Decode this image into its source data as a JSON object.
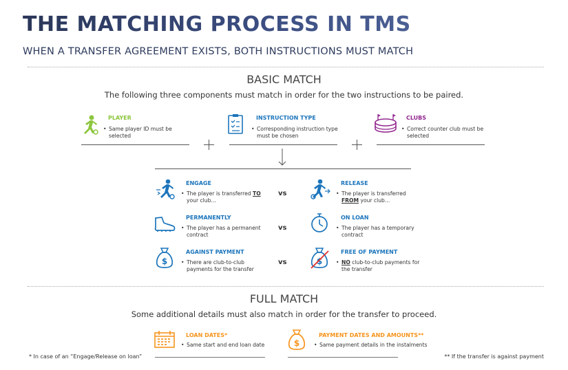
{
  "header": {
    "title": "THE MATCHING PROCESS IN TMS",
    "subtitle": "WHEN A TRANSFER AGREEMENT EXISTS, BOTH INSTRUCTIONS MUST MATCH"
  },
  "basic": {
    "heading": "BASIC MATCH",
    "intro": "The following three components must match in order for the two instructions to be paired.",
    "components": [
      {
        "title": "PLAYER",
        "desc": "Same player ID must be selected"
      },
      {
        "title": "INSTRUCTION TYPE",
        "desc": "Corresponding instruction type must be chosen"
      },
      {
        "title": "CLUBS",
        "desc": "Correct counter club must be selected"
      }
    ],
    "rows": [
      {
        "left": {
          "title": "ENGAGE",
          "desc_lead": "The player is transferred",
          "desc_emphasis": "TO",
          "desc_tail": "your club..."
        },
        "vs": "vs",
        "right": {
          "title": "RELEASE",
          "desc_lead": "The player is transferred",
          "desc_emphasis": "FROM",
          "desc_tail": "your club..."
        }
      },
      {
        "left": {
          "title": "PERMANENTLY",
          "desc": "The player has a permanent contract"
        },
        "vs": "vs",
        "right": {
          "title": "ON LOAN",
          "desc": "The player has a temporary contract"
        }
      },
      {
        "left": {
          "title": "AGAINST PAYMENT",
          "desc": "There are club-to-club payments for the transfer"
        },
        "vs": "vs",
        "right": {
          "title": "FREE OF PAYMENT",
          "desc_emphasis": "NO",
          "desc_tail": "club-to-club payments for the transfer"
        }
      }
    ]
  },
  "full": {
    "heading": "FULL MATCH",
    "intro": "Some additional details must also match in order for the transfer to proceed.",
    "items": [
      {
        "title": "LOAN DATES*",
        "desc": "Same start and end loan date"
      },
      {
        "title": "PAYMENT DATES AND AMOUNTS**",
        "desc": "Same payment details in the instalments"
      }
    ],
    "footnotes": [
      "* In case of an “Engage/Release on loan”",
      "** If the transfer is against payment"
    ]
  }
}
